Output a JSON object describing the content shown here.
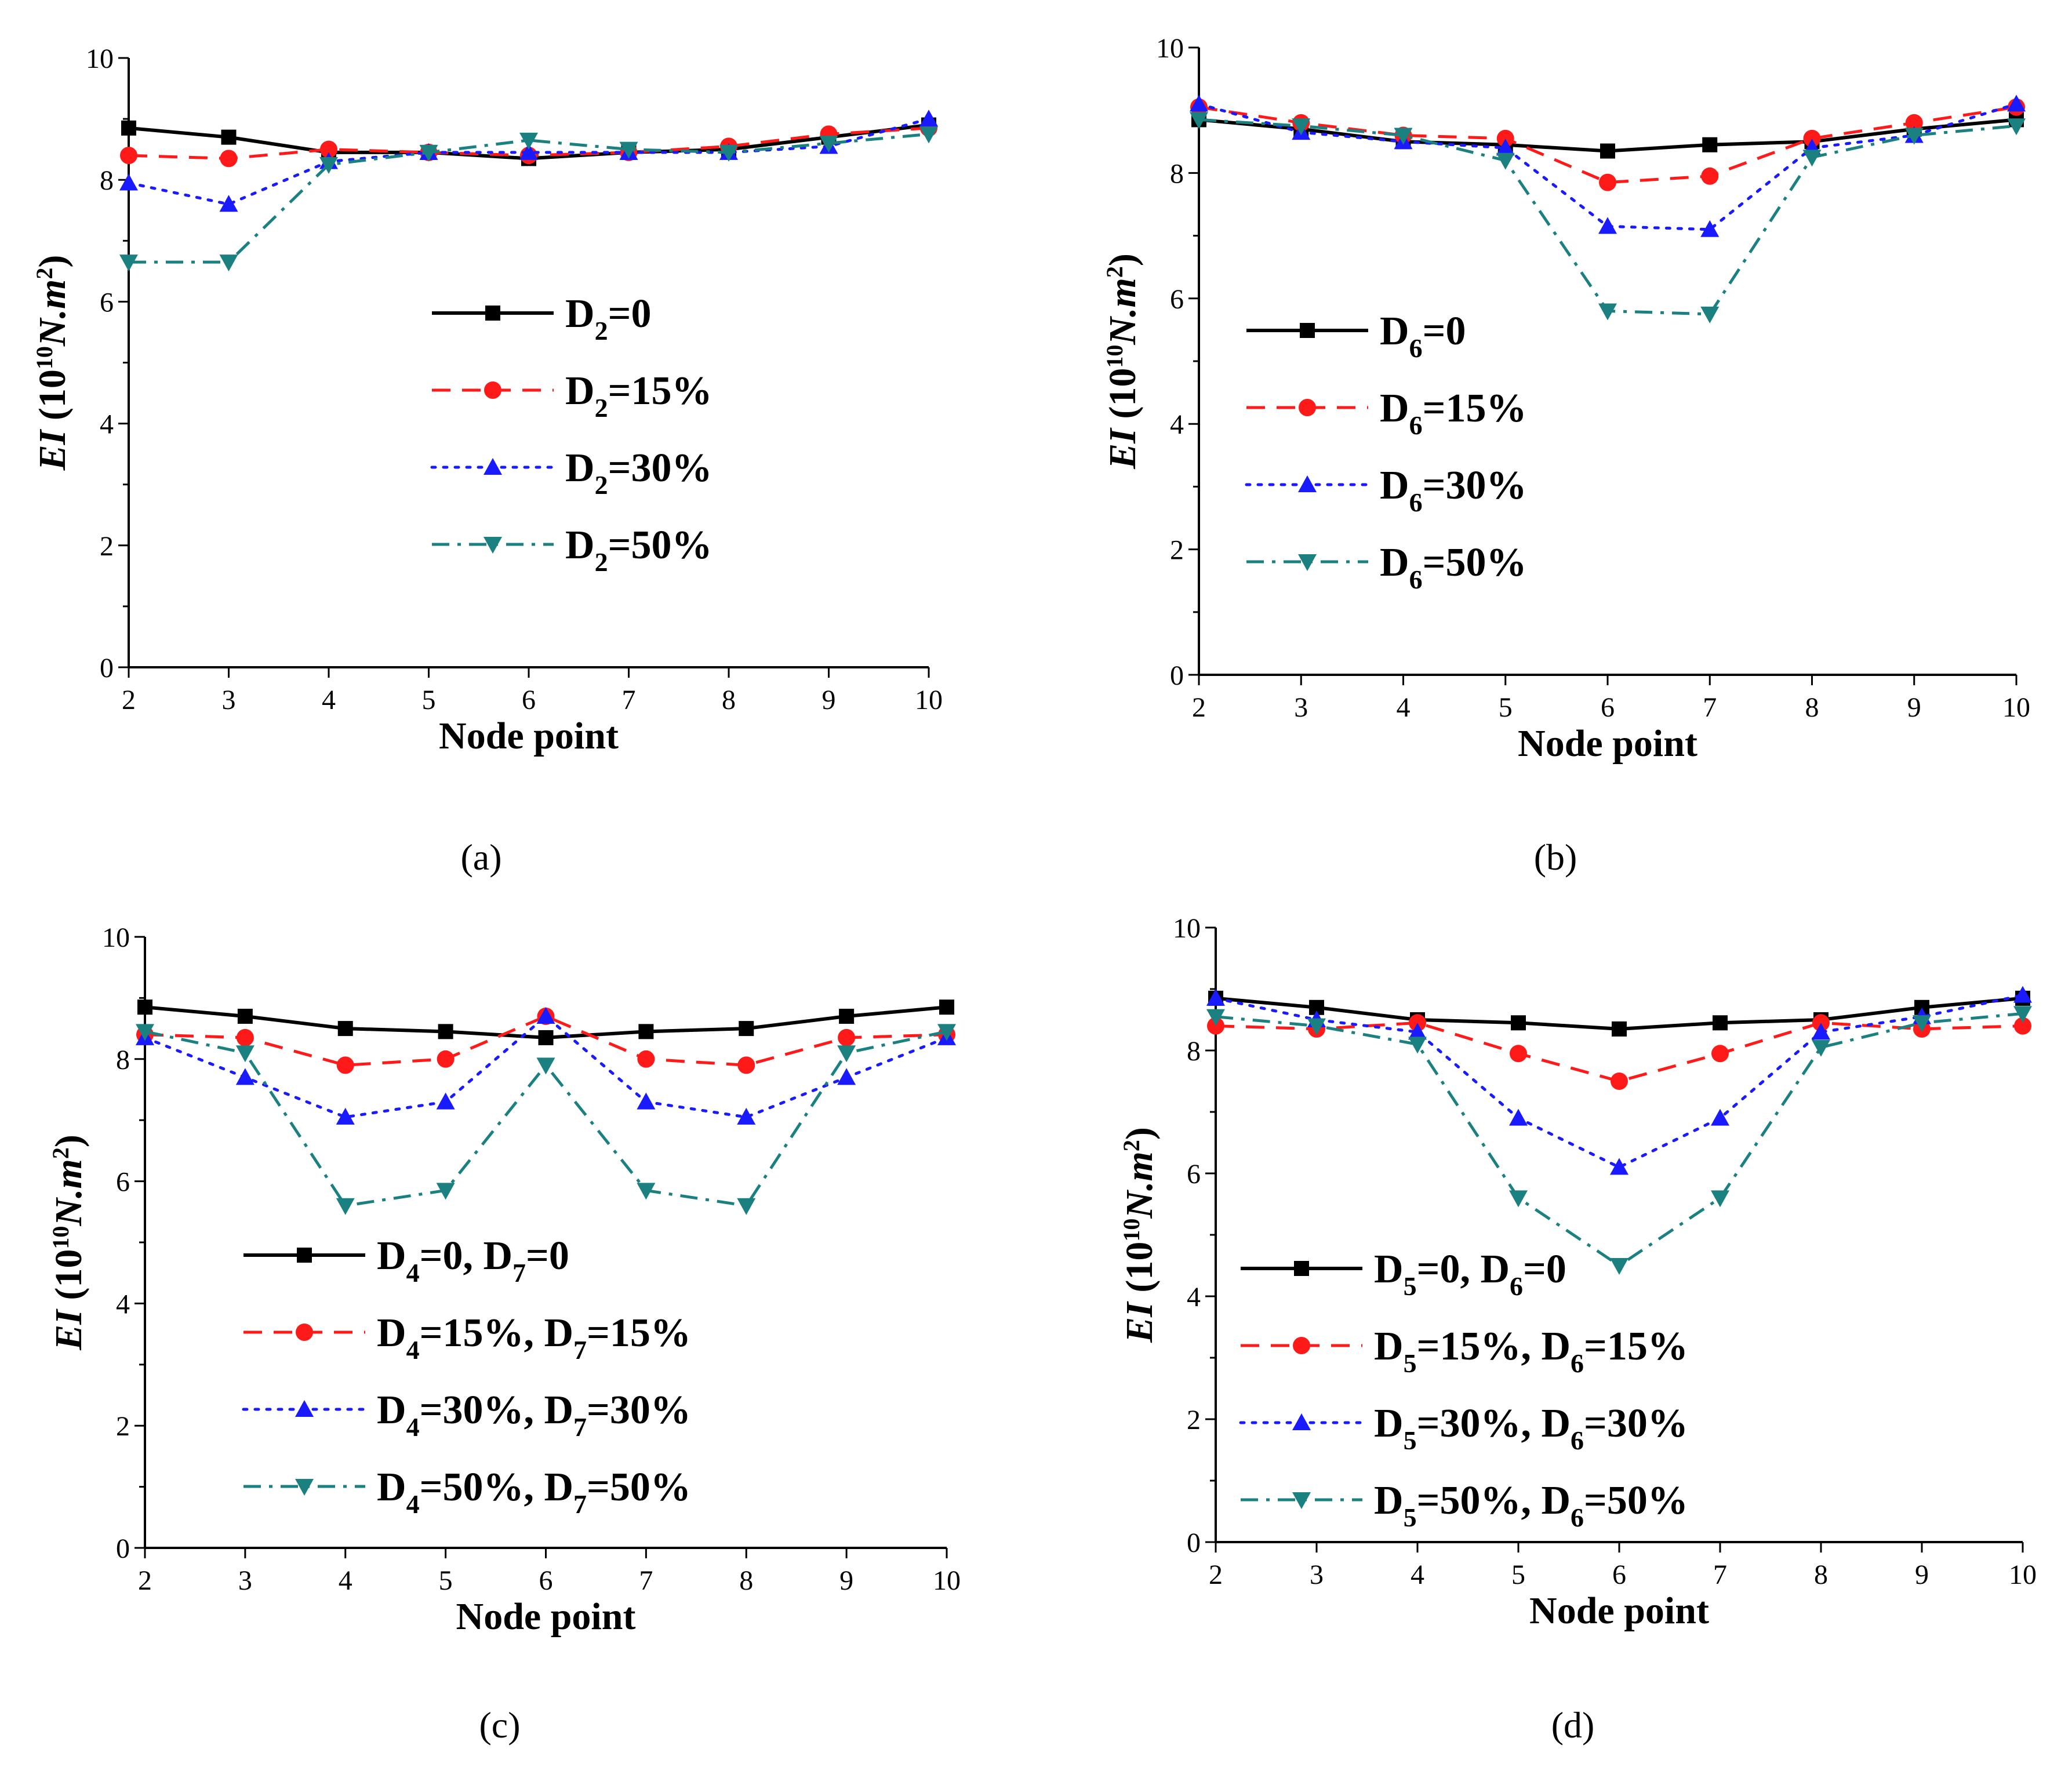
{
  "figure": {
    "colors": {
      "series0": "#000000",
      "series1": "#ff1a1a",
      "series2": "#1a1aff",
      "series3": "#1a8080"
    },
    "marker_names": [
      "square",
      "circle",
      "triangle-up",
      "triangle-down"
    ],
    "dash_styles": [
      "solid",
      "dash",
      "dot",
      "dashdot"
    ]
  },
  "chart_data": [
    {
      "id": "a",
      "caption": "(a)",
      "type": "line",
      "xlabel": "Node point",
      "ylabel_main": "EI (10",
      "ylabel_sup1": "10",
      "ylabel_unit": "N.m",
      "ylabel_sup2": "2",
      "ylabel_close": ")",
      "xlim": [
        2,
        10
      ],
      "ylim": [
        0,
        10
      ],
      "xticks": [
        "2",
        "3",
        "4",
        "5",
        "6",
        "7",
        "8",
        "9",
        "10"
      ],
      "yticks": [
        "0",
        "2",
        "4",
        "6",
        "8",
        "10"
      ],
      "x": [
        2,
        3,
        4,
        5,
        6,
        7,
        8,
        9,
        10
      ],
      "legend_position": "center",
      "series": [
        {
          "name": "D2=0",
          "legend": [
            [
              "D",
              "base"
            ],
            [
              "2",
              "sub"
            ],
            [
              "=0",
              "base"
            ]
          ],
          "values": [
            8.85,
            8.7,
            8.45,
            8.45,
            8.35,
            8.45,
            8.5,
            8.7,
            8.9
          ]
        },
        {
          "name": "D2=15%",
          "legend": [
            [
              "D",
              "base"
            ],
            [
              "2",
              "sub"
            ],
            [
              "=15%",
              "base"
            ]
          ],
          "values": [
            8.4,
            8.35,
            8.5,
            8.45,
            8.4,
            8.45,
            8.55,
            8.75,
            8.85
          ]
        },
        {
          "name": "D2=30%",
          "legend": [
            [
              "D",
              "base"
            ],
            [
              "2",
              "sub"
            ],
            [
              "=30%",
              "base"
            ]
          ],
          "values": [
            7.95,
            7.6,
            8.3,
            8.45,
            8.45,
            8.45,
            8.45,
            8.55,
            9.0
          ]
        },
        {
          "name": "D2=50%",
          "legend": [
            [
              "D",
              "base"
            ],
            [
              "2",
              "sub"
            ],
            [
              "=50%",
              "base"
            ]
          ],
          "values": [
            6.65,
            6.65,
            8.25,
            8.45,
            8.65,
            8.5,
            8.45,
            8.6,
            8.75
          ]
        }
      ]
    },
    {
      "id": "b",
      "caption": "(b)",
      "type": "line",
      "xlabel": "Node point",
      "ylabel_main": "EI (10",
      "ylabel_sup1": "10",
      "ylabel_unit": "N.m",
      "ylabel_sup2": "2",
      "ylabel_close": ")",
      "xlim": [
        2,
        10
      ],
      "ylim": [
        0,
        10
      ],
      "xticks": [
        "2",
        "3",
        "4",
        "5",
        "6",
        "7",
        "8",
        "9",
        "10"
      ],
      "yticks": [
        "0",
        "2",
        "4",
        "6",
        "8",
        "10"
      ],
      "x": [
        2,
        3,
        4,
        5,
        6,
        7,
        8,
        9,
        10
      ],
      "legend_position": "left",
      "series": [
        {
          "name": "D6=0",
          "legend": [
            [
              "D",
              "base"
            ],
            [
              "6",
              "sub"
            ],
            [
              "=0",
              "base"
            ]
          ],
          "values": [
            8.85,
            8.7,
            8.5,
            8.45,
            8.35,
            8.45,
            8.5,
            8.7,
            8.85
          ]
        },
        {
          "name": "D6=15%",
          "legend": [
            [
              "D",
              "base"
            ],
            [
              "6",
              "sub"
            ],
            [
              "=15%",
              "base"
            ]
          ],
          "values": [
            9.05,
            8.8,
            8.6,
            8.55,
            7.85,
            7.95,
            8.55,
            8.8,
            9.05
          ]
        },
        {
          "name": "D6=30%",
          "legend": [
            [
              "D",
              "base"
            ],
            [
              "6",
              "sub"
            ],
            [
              "=30%",
              "base"
            ]
          ],
          "values": [
            9.1,
            8.65,
            8.5,
            8.4,
            7.15,
            7.1,
            8.4,
            8.6,
            9.1
          ]
        },
        {
          "name": "D6=50%",
          "legend": [
            [
              "D",
              "base"
            ],
            [
              "6",
              "sub"
            ],
            [
              "=50%",
              "base"
            ]
          ],
          "values": [
            8.85,
            8.75,
            8.6,
            8.2,
            5.8,
            5.75,
            8.25,
            8.6,
            8.75
          ]
        }
      ]
    },
    {
      "id": "c",
      "caption": "(c)",
      "type": "line",
      "xlabel": "Node point",
      "ylabel_main": "EI (10",
      "ylabel_sup1": "10",
      "ylabel_unit": "N.m",
      "ylabel_sup2": "2",
      "ylabel_close": ")",
      "xlim": [
        2,
        10
      ],
      "ylim": [
        0,
        10
      ],
      "xticks": [
        "2",
        "3",
        "4",
        "5",
        "6",
        "7",
        "8",
        "9",
        "10"
      ],
      "yticks": [
        "0",
        "2",
        "4",
        "6",
        "8",
        "10"
      ],
      "x": [
        2,
        3,
        4,
        5,
        6,
        7,
        8,
        9,
        10
      ],
      "legend_position": "bottom-left",
      "series": [
        {
          "name": "D4=0, D7=0",
          "legend": [
            [
              "D",
              "base"
            ],
            [
              "4",
              "sub"
            ],
            [
              "=0, D",
              "base"
            ],
            [
              "7",
              "sub"
            ],
            [
              "=0",
              "base"
            ]
          ],
          "values": [
            8.85,
            8.7,
            8.5,
            8.45,
            8.35,
            8.45,
            8.5,
            8.7,
            8.85
          ]
        },
        {
          "name": "D4=15%, D7=15%",
          "legend": [
            [
              "D",
              "base"
            ],
            [
              "4",
              "sub"
            ],
            [
              "=15%, D",
              "base"
            ],
            [
              "7",
              "sub"
            ],
            [
              "=15%",
              "base"
            ]
          ],
          "values": [
            8.4,
            8.35,
            7.9,
            8.0,
            8.7,
            8.0,
            7.9,
            8.35,
            8.4
          ]
        },
        {
          "name": "D4=30%, D7=30%",
          "legend": [
            [
              "D",
              "base"
            ],
            [
              "4",
              "sub"
            ],
            [
              "=30%, D",
              "base"
            ],
            [
              "7",
              "sub"
            ],
            [
              "=30%",
              "base"
            ]
          ],
          "values": [
            8.35,
            7.7,
            7.05,
            7.3,
            8.7,
            7.3,
            7.05,
            7.7,
            8.35
          ]
        },
        {
          "name": "D4=50%, D7=50%",
          "legend": [
            [
              "D",
              "base"
            ],
            [
              "4",
              "sub"
            ],
            [
              "=50%, D",
              "base"
            ],
            [
              "7",
              "sub"
            ],
            [
              "=50%",
              "base"
            ]
          ],
          "values": [
            8.45,
            8.1,
            5.6,
            5.85,
            7.9,
            5.85,
            5.6,
            8.1,
            8.45
          ]
        }
      ]
    },
    {
      "id": "d",
      "caption": "(d)",
      "type": "line",
      "xlabel": "Node point",
      "ylabel_main": "EI (10",
      "ylabel_sup1": "10",
      "ylabel_unit": "N.m",
      "ylabel_sup2": "2",
      "ylabel_close": ")",
      "xlim": [
        2,
        10
      ],
      "ylim": [
        0,
        10
      ],
      "xticks": [
        "2",
        "3",
        "4",
        "5",
        "6",
        "7",
        "8",
        "9",
        "10"
      ],
      "yticks": [
        "0",
        "2",
        "4",
        "6",
        "8",
        "10"
      ],
      "x": [
        2,
        3,
        4,
        5,
        6,
        7,
        8,
        9,
        10
      ],
      "legend_position": "bottom-left",
      "series": [
        {
          "name": "D5=0, D6=0",
          "legend": [
            [
              "D",
              "base"
            ],
            [
              "5",
              "sub"
            ],
            [
              "=0, D",
              "base"
            ],
            [
              "6",
              "sub"
            ],
            [
              "=0",
              "base"
            ]
          ],
          "values": [
            8.85,
            8.7,
            8.5,
            8.45,
            8.35,
            8.45,
            8.5,
            8.7,
            8.85
          ]
        },
        {
          "name": "D5=15%, D6=15%",
          "legend": [
            [
              "D",
              "base"
            ],
            [
              "5",
              "sub"
            ],
            [
              "=15%, D",
              "base"
            ],
            [
              "6",
              "sub"
            ],
            [
              "=15%",
              "base"
            ]
          ],
          "values": [
            8.4,
            8.35,
            8.45,
            7.95,
            7.5,
            7.95,
            8.45,
            8.35,
            8.4
          ]
        },
        {
          "name": "D5=30%, D6=30%",
          "legend": [
            [
              "D",
              "base"
            ],
            [
              "5",
              "sub"
            ],
            [
              "=30%, D",
              "base"
            ],
            [
              "6",
              "sub"
            ],
            [
              "=30%",
              "base"
            ]
          ],
          "values": [
            8.85,
            8.5,
            8.3,
            6.9,
            6.1,
            6.9,
            8.3,
            8.55,
            8.9
          ]
        },
        {
          "name": "D5=50%, D6=50%",
          "legend": [
            [
              "D",
              "base"
            ],
            [
              "5",
              "sub"
            ],
            [
              "=50%, D",
              "base"
            ],
            [
              "6",
              "sub"
            ],
            [
              "=50%",
              "base"
            ]
          ],
          "values": [
            8.55,
            8.4,
            8.1,
            5.6,
            4.5,
            5.6,
            8.05,
            8.45,
            8.6
          ]
        }
      ]
    }
  ]
}
